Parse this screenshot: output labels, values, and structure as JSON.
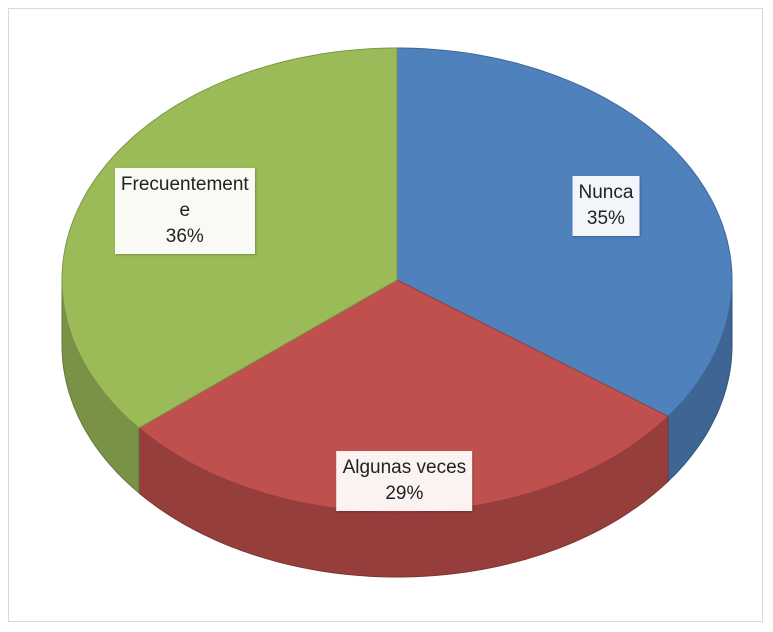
{
  "chart_data": {
    "type": "pie",
    "categories": [
      "Nunca",
      "Algunas veces",
      "Frecuentemente"
    ],
    "values": [
      35,
      29,
      36
    ],
    "value_labels": [
      "35%",
      "29%",
      "36%"
    ],
    "colors": [
      "#4f81bd",
      "#c0504d",
      "#9bbb59"
    ]
  }
}
